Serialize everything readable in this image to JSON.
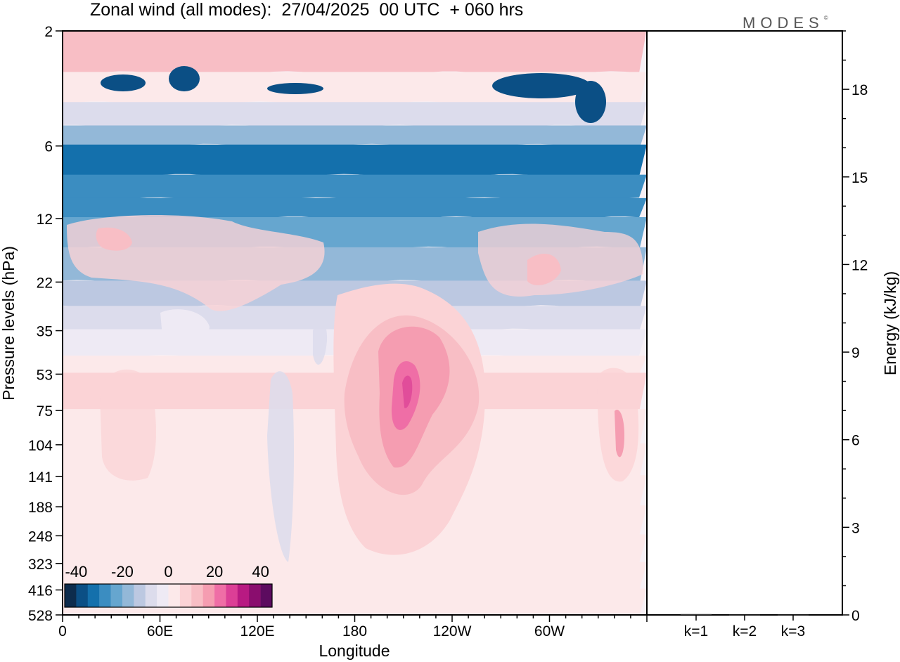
{
  "title": "Zonal wind (all modes):  27/04/2025  00 UTC  + 060 hrs",
  "logo": "MODES",
  "logo_mark": "©",
  "colors": {
    "background_field": "#f7f0f5",
    "border": "#000000"
  },
  "chart_data": [
    {
      "type": "heatmap",
      "title": "Zonal wind (all modes):  27/04/2025  00 UTC  + 060 hrs",
      "xlabel": "Longitude",
      "ylabel": "Pressure levels (hPa)",
      "x_tick_labels": [
        "0",
        "60E",
        "120E",
        "180",
        "120W",
        "60W"
      ],
      "y_tick_labels": [
        "2",
        "6",
        "12",
        "22",
        "35",
        "53",
        "75",
        "104",
        "141",
        "188",
        "248",
        "323",
        "416",
        "528"
      ],
      "colorbar": {
        "tick_labels": [
          "-40",
          "-20",
          "0",
          "20",
          "40"
        ],
        "range": [
          -45,
          45
        ],
        "colors": [
          "#0d2c4d",
          "#0b4f85",
          "#1470ac",
          "#3b8dc1",
          "#66a6cf",
          "#93b8d8",
          "#bcc8e1",
          "#dcdcec",
          "#eeeaf4",
          "#fce9ea",
          "#fbd3d6",
          "#f8bec5",
          "#f59db1",
          "#ef6ea6",
          "#dc3f96",
          "#b81a82",
          "#8a0d6e",
          "#5c0b5f"
        ]
      },
      "level_bands": [
        {
          "level": "2",
          "value": 14
        },
        {
          "level": "3",
          "value": 2
        },
        {
          "level": "4",
          "value": -8
        },
        {
          "level": "5",
          "value": -20
        },
        {
          "level": "6",
          "value": -32
        },
        {
          "level": "8",
          "value": -30
        },
        {
          "level": "10",
          "value": -26
        },
        {
          "level": "12",
          "value": -22
        },
        {
          "level": "16",
          "value": -18
        },
        {
          "level": "22",
          "value": -12
        },
        {
          "level": "28",
          "value": -6
        },
        {
          "level": "35",
          "value": -2
        },
        {
          "level": "45",
          "value": 3
        },
        {
          "level": "53",
          "value": 5
        },
        {
          "level": "75",
          "value": 3
        },
        {
          "level": "104",
          "value": 1
        },
        {
          "level": "141",
          "value": 1
        },
        {
          "level": "188",
          "value": 1
        },
        {
          "level": "248",
          "value": 1
        },
        {
          "level": "323",
          "value": 0
        },
        {
          "level": "416",
          "value": 0
        },
        {
          "level": "528",
          "value": 0
        }
      ],
      "jet_maximum": {
        "longitude": "160W",
        "level": "141",
        "value": 16
      }
    },
    {
      "type": "bar",
      "categories": [
        "k=1",
        "k=2",
        "k=3"
      ],
      "values": [
        0.03,
        0.01,
        0.01
      ],
      "ylabel": "Energy (kJ/kg)",
      "y_tick_labels": [
        "0",
        "3",
        "6",
        "9",
        "12",
        "15",
        "18"
      ],
      "ylim": [
        0,
        20
      ]
    }
  ]
}
